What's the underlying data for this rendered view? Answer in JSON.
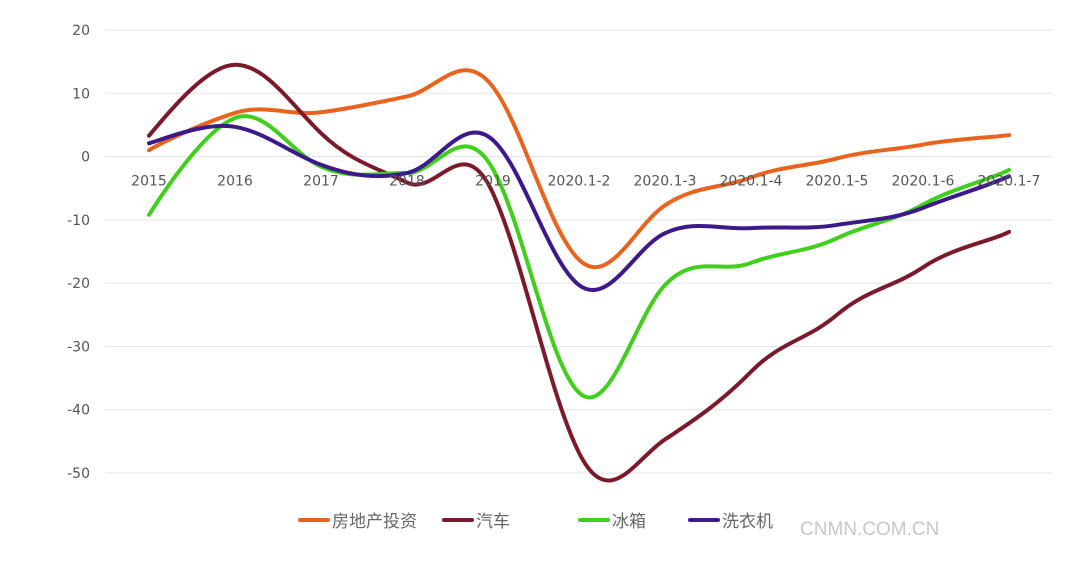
{
  "chart_data": {
    "type": "line",
    "title": "",
    "xlabel": "",
    "ylabel": "",
    "ylim": [
      -50,
      20
    ],
    "yticks": [
      20,
      10,
      0,
      -10,
      -20,
      -30,
      -40,
      -50
    ],
    "grid": true,
    "smooth": true,
    "legend_position": "bottom",
    "categories": [
      "2015",
      "2016",
      "2017",
      "2018",
      "2019",
      "2020.1-2",
      "2020.1-3",
      "2020.1-4",
      "2020.1-5",
      "2020.1-6",
      "2020.1-7"
    ],
    "series": [
      {
        "name": "房地产投资",
        "color": "#e8641e",
        "values": [
          1.0,
          6.9,
          7.0,
          9.5,
          11.0,
          -16.3,
          -7.7,
          -3.3,
          -0.3,
          1.9,
          3.4
        ]
      },
      {
        "name": "汽车",
        "color": "#7b1a2a",
        "values": [
          3.3,
          14.5,
          3.7,
          -4.1,
          -5.8,
          -46.8,
          -44.7,
          -34.0,
          -25.0,
          -17.5,
          -11.9
        ]
      },
      {
        "name": "冰箱",
        "color": "#3fcf1c",
        "values": [
          -9.2,
          6.1,
          -1.6,
          -2.6,
          -2.0,
          -37.3,
          -20.3,
          -16.8,
          -12.9,
          -7.6,
          -2.1
        ]
      },
      {
        "name": "洗衣机",
        "color": "#3c1a8a",
        "values": [
          2.1,
          4.7,
          -1.3,
          -2.6,
          2.6,
          -20.3,
          -12.1,
          -11.3,
          -10.8,
          -8.1,
          -3.1
        ]
      }
    ]
  },
  "watermark": "CNMN.COM.CN"
}
